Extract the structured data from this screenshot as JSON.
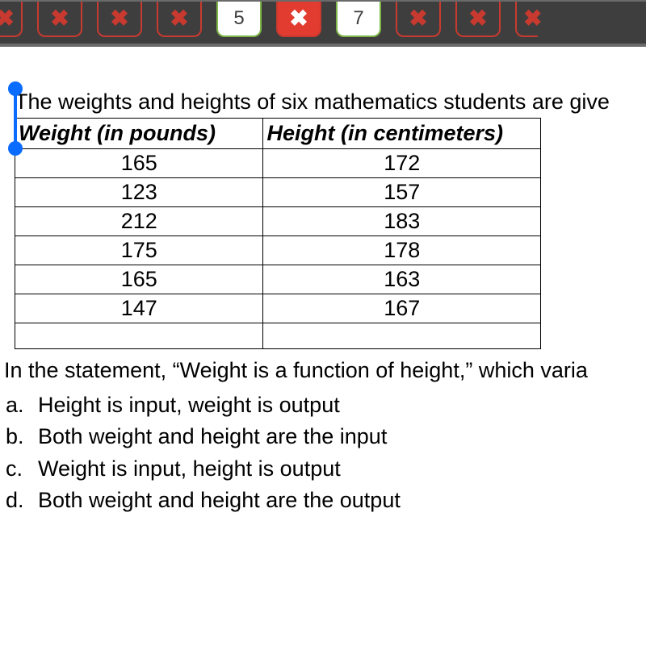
{
  "nav": {
    "bg": "#3e3e3e",
    "wrong_color": "#c83a2f",
    "open_border": "#7fb648",
    "current_bg": "#e23b30",
    "tabs": [
      {
        "kind": "wrong-partial",
        "glyph": "✖"
      },
      {
        "kind": "wrong",
        "glyph": "✖"
      },
      {
        "kind": "wrong",
        "glyph": "✖"
      },
      {
        "kind": "wrong",
        "glyph": "✖"
      },
      {
        "kind": "open",
        "glyph": "5"
      },
      {
        "kind": "current",
        "glyph": "✖"
      },
      {
        "kind": "open",
        "glyph": "7"
      },
      {
        "kind": "wrong",
        "glyph": "✖"
      },
      {
        "kind": "wrong",
        "glyph": "✖"
      },
      {
        "kind": "wrong-partial-right",
        "glyph": "✖"
      }
    ]
  },
  "prompt": "The weights and heights of six mathematics students are give",
  "table": {
    "columns": [
      "Weight (in pounds)",
      "Height (in centimeters)"
    ],
    "rows": [
      [
        "165",
        "172"
      ],
      [
        "123",
        "157"
      ],
      [
        "212",
        "183"
      ],
      [
        "175",
        "178"
      ],
      [
        "165",
        "163"
      ],
      [
        "147",
        "167"
      ]
    ]
  },
  "question": "In the statement, “Weight is a function of height,” which varia",
  "options": [
    {
      "letter": "a.",
      "text": "Height is input, weight is output"
    },
    {
      "letter": "b.",
      "text": "Both weight and height are the input"
    },
    {
      "letter": "c.",
      "text": "Weight is input, height is output"
    },
    {
      "letter": "d.",
      "text": "Both weight and height are the output"
    }
  ],
  "selection_color": "#0a6cff"
}
